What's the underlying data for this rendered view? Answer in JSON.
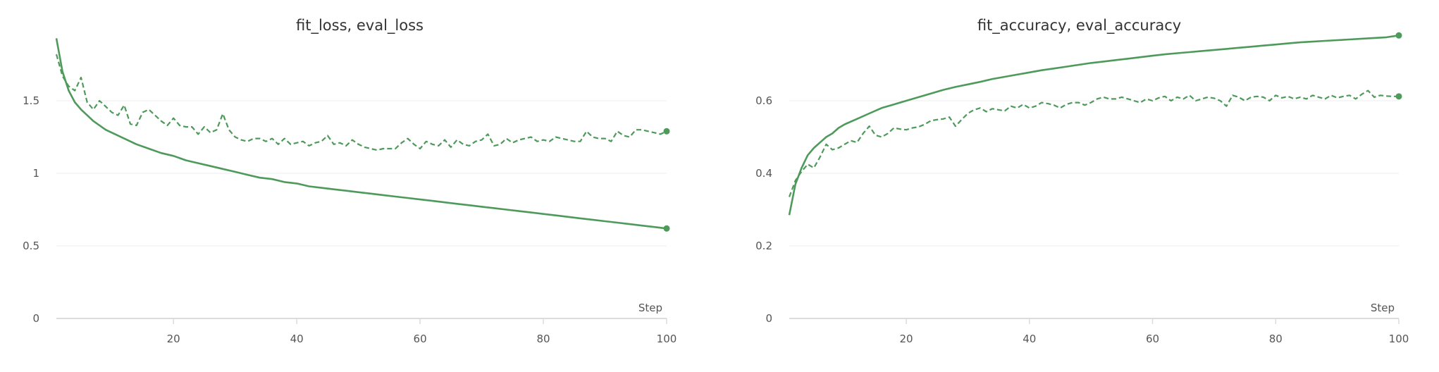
{
  "chart_data": [
    {
      "type": "line",
      "title": "fit_loss, eval_loss",
      "xlabel": "Step",
      "ylabel": "",
      "xlim": [
        1,
        100
      ],
      "ylim": [
        0,
        2.0
      ],
      "xticks": [
        20,
        40,
        60,
        80,
        100
      ],
      "yticks": [
        0,
        0.5,
        1,
        1.5
      ],
      "ytick_labels": [
        "0",
        "0.5",
        "1",
        "1.5"
      ],
      "grid": true,
      "color": "#4e9a5b",
      "series": [
        {
          "style": "solid",
          "x": [
            1,
            2,
            3,
            4,
            5,
            6,
            7,
            8,
            9,
            10,
            12,
            14,
            16,
            18,
            20,
            22,
            24,
            26,
            28,
            30,
            32,
            34,
            36,
            38,
            40,
            42,
            44,
            46,
            48,
            50,
            52,
            54,
            56,
            58,
            60,
            62,
            64,
            66,
            68,
            70,
            72,
            74,
            76,
            78,
            80,
            82,
            84,
            86,
            88,
            90,
            92,
            94,
            96,
            98,
            100
          ],
          "values": [
            1.93,
            1.7,
            1.57,
            1.49,
            1.44,
            1.4,
            1.36,
            1.33,
            1.3,
            1.28,
            1.24,
            1.2,
            1.17,
            1.14,
            1.12,
            1.09,
            1.07,
            1.05,
            1.03,
            1.01,
            0.99,
            0.97,
            0.96,
            0.94,
            0.93,
            0.91,
            0.9,
            0.89,
            0.88,
            0.87,
            0.86,
            0.85,
            0.84,
            0.83,
            0.82,
            0.81,
            0.8,
            0.79,
            0.78,
            0.77,
            0.76,
            0.75,
            0.74,
            0.73,
            0.72,
            0.71,
            0.7,
            0.69,
            0.68,
            0.67,
            0.66,
            0.65,
            0.64,
            0.63,
            0.62
          ]
        },
        {
          "style": "dashed",
          "x": [
            1,
            2,
            3,
            4,
            5,
            6,
            7,
            8,
            9,
            10,
            11,
            12,
            13,
            14,
            15,
            16,
            17,
            18,
            19,
            20,
            21,
            22,
            23,
            24,
            25,
            26,
            27,
            28,
            29,
            30,
            31,
            32,
            33,
            34,
            35,
            36,
            37,
            38,
            39,
            40,
            41,
            42,
            43,
            44,
            45,
            46,
            47,
            48,
            49,
            50,
            51,
            52,
            53,
            54,
            55,
            56,
            57,
            58,
            59,
            60,
            61,
            62,
            63,
            64,
            65,
            66,
            67,
            68,
            69,
            70,
            71,
            72,
            73,
            74,
            75,
            76,
            77,
            78,
            79,
            80,
            81,
            82,
            83,
            84,
            85,
            86,
            87,
            88,
            89,
            90,
            91,
            92,
            93,
            94,
            95,
            96,
            97,
            98,
            99,
            100
          ],
          "values": [
            1.82,
            1.67,
            1.6,
            1.57,
            1.66,
            1.49,
            1.44,
            1.5,
            1.46,
            1.42,
            1.4,
            1.47,
            1.34,
            1.33,
            1.42,
            1.44,
            1.4,
            1.36,
            1.33,
            1.38,
            1.33,
            1.32,
            1.32,
            1.27,
            1.32,
            1.28,
            1.3,
            1.41,
            1.3,
            1.25,
            1.23,
            1.22,
            1.24,
            1.24,
            1.22,
            1.24,
            1.2,
            1.24,
            1.2,
            1.21,
            1.22,
            1.19,
            1.21,
            1.22,
            1.26,
            1.2,
            1.21,
            1.19,
            1.23,
            1.2,
            1.18,
            1.17,
            1.16,
            1.17,
            1.17,
            1.17,
            1.21,
            1.24,
            1.2,
            1.17,
            1.22,
            1.2,
            1.19,
            1.23,
            1.18,
            1.23,
            1.2,
            1.19,
            1.22,
            1.23,
            1.27,
            1.19,
            1.2,
            1.24,
            1.21,
            1.23,
            1.24,
            1.25,
            1.22,
            1.23,
            1.22,
            1.25,
            1.24,
            1.23,
            1.22,
            1.22,
            1.29,
            1.25,
            1.24,
            1.24,
            1.22,
            1.29,
            1.26,
            1.25,
            1.3,
            1.3,
            1.29,
            1.28,
            1.27,
            1.29
          ]
        }
      ]
    },
    {
      "type": "line",
      "title": "fit_accuracy, eval_accuracy",
      "xlabel": "Step",
      "ylabel": "",
      "xlim": [
        1,
        100
      ],
      "ylim": [
        0,
        0.8
      ],
      "xticks": [
        20,
        40,
        60,
        80,
        100
      ],
      "yticks": [
        0,
        0.2,
        0.4,
        0.6
      ],
      "ytick_labels": [
        "0",
        "0.2",
        "0.4",
        "0.6"
      ],
      "grid": true,
      "color": "#4e9a5b",
      "series": [
        {
          "style": "solid",
          "x": [
            1,
            2,
            3,
            4,
            5,
            6,
            7,
            8,
            9,
            10,
            12,
            14,
            16,
            18,
            20,
            22,
            24,
            26,
            28,
            30,
            32,
            34,
            36,
            38,
            40,
            42,
            44,
            46,
            48,
            50,
            52,
            54,
            56,
            58,
            60,
            62,
            64,
            66,
            68,
            70,
            72,
            74,
            76,
            78,
            80,
            82,
            84,
            86,
            88,
            90,
            92,
            94,
            96,
            98,
            100
          ],
          "values": [
            0.285,
            0.37,
            0.415,
            0.45,
            0.47,
            0.485,
            0.5,
            0.51,
            0.525,
            0.535,
            0.55,
            0.565,
            0.58,
            0.59,
            0.6,
            0.61,
            0.62,
            0.63,
            0.638,
            0.645,
            0.652,
            0.66,
            0.666,
            0.672,
            0.678,
            0.684,
            0.689,
            0.694,
            0.699,
            0.704,
            0.708,
            0.712,
            0.716,
            0.72,
            0.724,
            0.728,
            0.731,
            0.734,
            0.737,
            0.74,
            0.743,
            0.746,
            0.749,
            0.752,
            0.755,
            0.758,
            0.761,
            0.763,
            0.765,
            0.767,
            0.769,
            0.771,
            0.773,
            0.775,
            0.78
          ]
        },
        {
          "style": "dashed",
          "x": [
            1,
            2,
            3,
            4,
            5,
            6,
            7,
            8,
            9,
            10,
            11,
            12,
            13,
            14,
            15,
            16,
            17,
            18,
            19,
            20,
            21,
            22,
            23,
            24,
            25,
            26,
            27,
            28,
            29,
            30,
            31,
            32,
            33,
            34,
            35,
            36,
            37,
            38,
            39,
            40,
            41,
            42,
            43,
            44,
            45,
            46,
            47,
            48,
            49,
            50,
            51,
            52,
            53,
            54,
            55,
            56,
            57,
            58,
            59,
            60,
            61,
            62,
            63,
            64,
            65,
            66,
            67,
            68,
            69,
            70,
            71,
            72,
            73,
            74,
            75,
            76,
            77,
            78,
            79,
            80,
            81,
            82,
            83,
            84,
            85,
            86,
            87,
            88,
            89,
            90,
            91,
            92,
            93,
            94,
            95,
            96,
            97,
            98,
            99,
            100
          ],
          "values": [
            0.335,
            0.38,
            0.405,
            0.425,
            0.415,
            0.445,
            0.48,
            0.465,
            0.47,
            0.48,
            0.49,
            0.485,
            0.51,
            0.53,
            0.505,
            0.5,
            0.51,
            0.525,
            0.522,
            0.52,
            0.525,
            0.528,
            0.535,
            0.545,
            0.548,
            0.55,
            0.555,
            0.53,
            0.548,
            0.565,
            0.575,
            0.58,
            0.57,
            0.578,
            0.575,
            0.572,
            0.585,
            0.58,
            0.59,
            0.58,
            0.585,
            0.595,
            0.592,
            0.588,
            0.58,
            0.59,
            0.595,
            0.595,
            0.588,
            0.595,
            0.605,
            0.61,
            0.605,
            0.605,
            0.61,
            0.605,
            0.6,
            0.595,
            0.605,
            0.6,
            0.608,
            0.612,
            0.6,
            0.61,
            0.605,
            0.615,
            0.6,
            0.605,
            0.61,
            0.607,
            0.6,
            0.585,
            0.615,
            0.61,
            0.6,
            0.61,
            0.612,
            0.61,
            0.6,
            0.615,
            0.608,
            0.612,
            0.605,
            0.61,
            0.605,
            0.615,
            0.61,
            0.605,
            0.615,
            0.608,
            0.612,
            0.615,
            0.605,
            0.618,
            0.628,
            0.61,
            0.615,
            0.613,
            0.612,
            0.612
          ]
        }
      ]
    }
  ]
}
